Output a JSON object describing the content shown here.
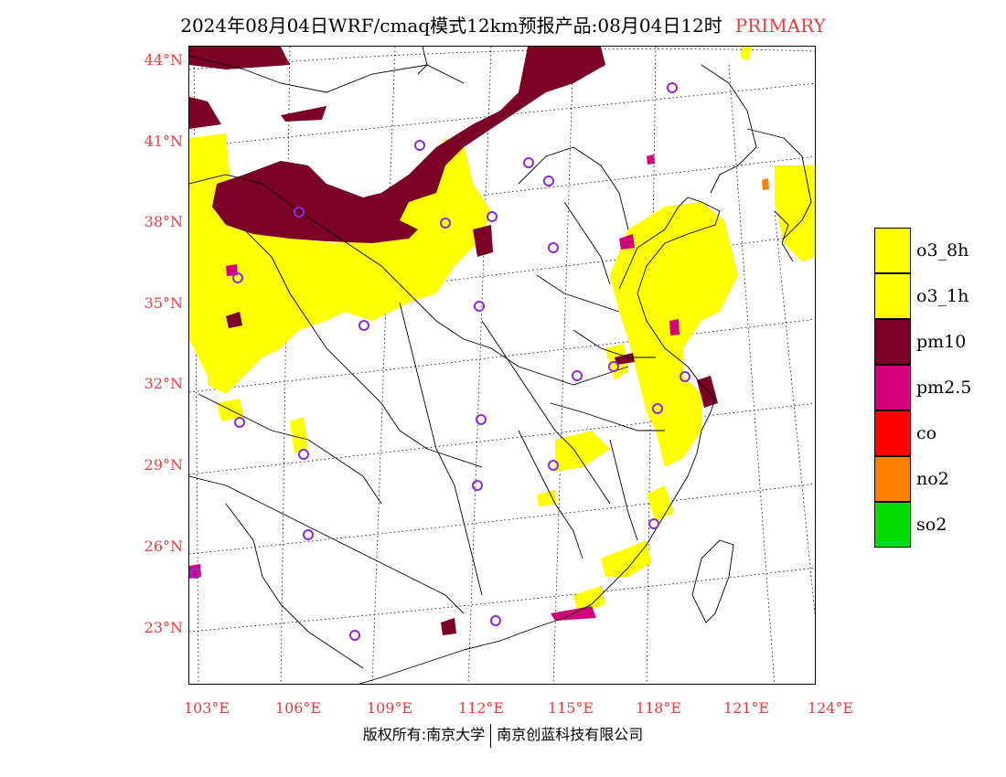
{
  "title": {
    "main": "2024年08月04日WRF/cmaq模式12km预报产品:08月04日12时",
    "tag": "PRIMARY"
  },
  "colors": {
    "label_red": "#e84040",
    "o3_8h": "#ffff00",
    "o3_1h": "#ffff00",
    "pm10": "#7a0026",
    "pm25": "#d1007a",
    "co": "#ff0000",
    "no2": "#ff8000",
    "so2": "#00dd00",
    "station_circle": "#8a2be2"
  },
  "axes": {
    "lat_labels": [
      "44°N",
      "41°N",
      "38°N",
      "35°N",
      "32°N",
      "29°N",
      "26°N",
      "23°N"
    ],
    "lon_labels": [
      "103°E",
      "106°E",
      "109°E",
      "112°E",
      "115°E",
      "118°E",
      "121°E",
      "124°E"
    ]
  },
  "legend": [
    {
      "label": "o3_8h",
      "color": "#ffff00"
    },
    {
      "label": "o3_1h",
      "color": "#ffff00"
    },
    {
      "label": "pm10",
      "color": "#7a0026"
    },
    {
      "label": "pm2.5",
      "color": "#d1007a"
    },
    {
      "label": "co",
      "color": "#ff0000"
    },
    {
      "label": "no2",
      "color": "#ff8000"
    },
    {
      "label": "so2",
      "color": "#00dd00"
    }
  ],
  "footer": {
    "left": "版权所有:南京大学",
    "right": "南京创蓝科技有限公司"
  }
}
